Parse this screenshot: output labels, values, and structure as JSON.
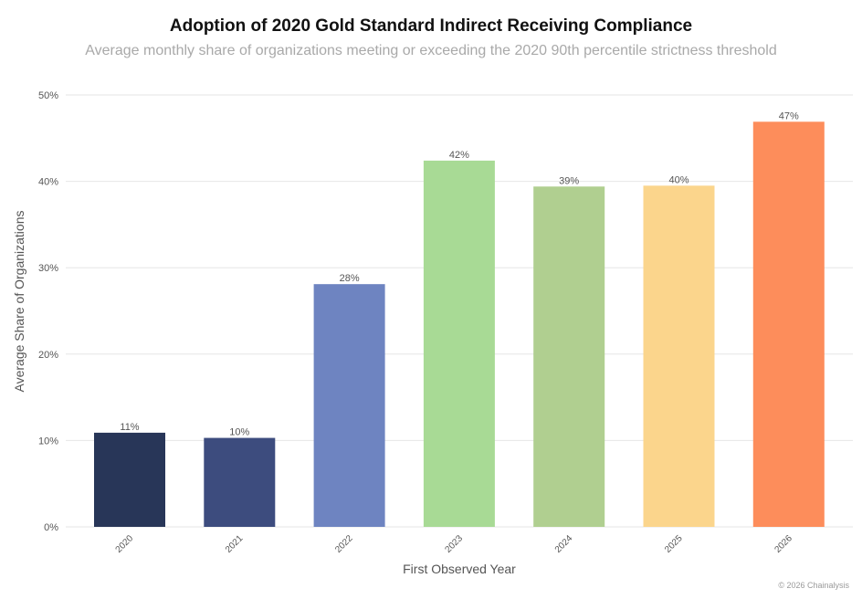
{
  "title": "Adoption of 2020 Gold Standard Indirect Receiving Compliance",
  "subtitle": "Average monthly share of organizations meeting or exceeding the 2020 90th percentile strictness threshold",
  "copyright": "© 2026 Chainalysis",
  "chart_data": {
    "type": "bar",
    "title": "Adoption of 2020 Gold Standard Indirect Receiving Compliance",
    "subtitle": "Average monthly share of organizations meeting or exceeding the 2020 90th percentile strictness threshold",
    "xlabel": "First Observed Year",
    "ylabel": "Average Share of Organizations",
    "categories": [
      "2020",
      "2021",
      "2022",
      "2023",
      "2024",
      "2025",
      "2026"
    ],
    "values": [
      10.9,
      10.3,
      28.1,
      42.4,
      39.4,
      39.5,
      46.9
    ],
    "data_labels": [
      "11%",
      "10%",
      "28%",
      "42%",
      "39%",
      "40%",
      "47%"
    ],
    "colors": [
      "#283658",
      "#3d4c7e",
      "#6e84c1",
      "#a8da95",
      "#b0cf90",
      "#fbd58c",
      "#fd8d5b"
    ],
    "ylim": [
      0,
      50
    ],
    "yticks": [
      0,
      10,
      20,
      30,
      40,
      50
    ],
    "ytick_labels": [
      "0%",
      "10%",
      "20%",
      "30%",
      "40%",
      "50%"
    ],
    "grid": true,
    "legend": "none"
  }
}
